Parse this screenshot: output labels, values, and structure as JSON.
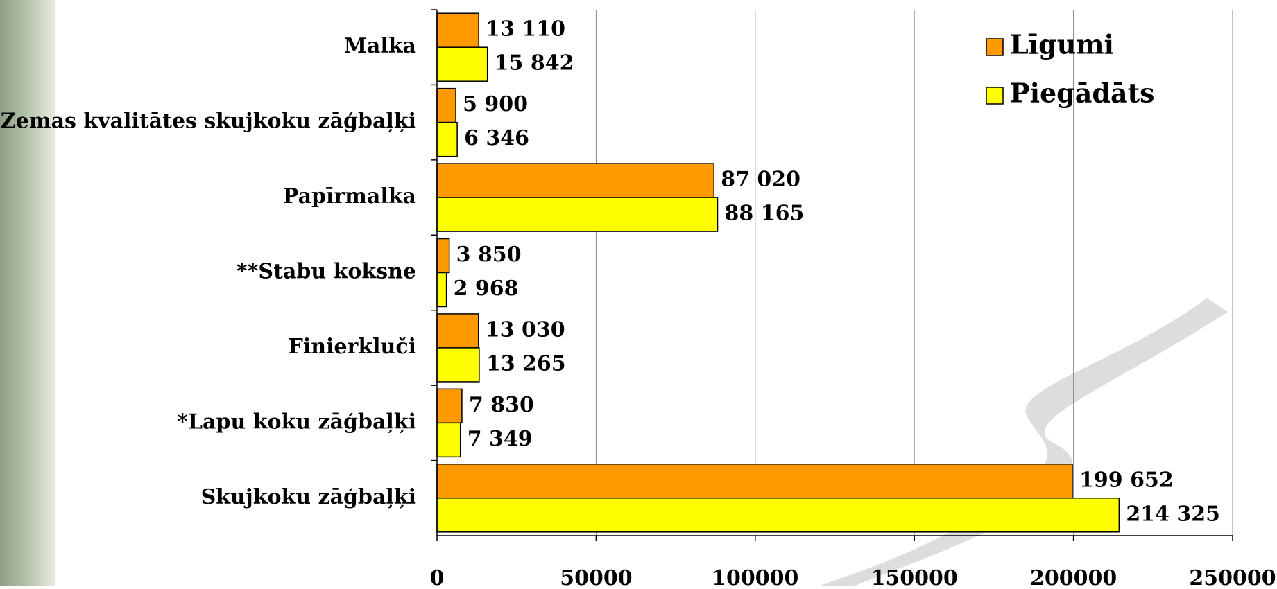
{
  "chart_data": {
    "type": "barh",
    "categories": [
      "Malka",
      "Zemas kvalitātes skujkoku zāģbaļķi",
      "Papīrmalka",
      "**Stabu koksne",
      "Finierkluči",
      "*Lapu koku zāģbaļķi",
      "Skujkoku zāģbaļķi"
    ],
    "series": [
      {
        "name": "Līgumi",
        "color": "#ff9900",
        "values": [
          13110,
          5900,
          87020,
          3850,
          13030,
          7830,
          199652
        ],
        "value_labels": [
          "13 110",
          "5 900",
          "87 020",
          "3 850",
          "13 030",
          "7 830",
          "199 652"
        ]
      },
      {
        "name": "Piegādāts",
        "color": "#ffff00",
        "values": [
          15842,
          6346,
          88165,
          2968,
          13265,
          7349,
          214325
        ],
        "value_labels": [
          "15 842",
          "6 346",
          "88 165",
          "2 968",
          "13 265",
          "7 349",
          "214 325"
        ]
      }
    ],
    "xlim": [
      0,
      250000
    ],
    "xticks": [
      0,
      50000,
      100000,
      150000,
      200000,
      250000
    ],
    "grid": true,
    "legend": "upper right"
  }
}
